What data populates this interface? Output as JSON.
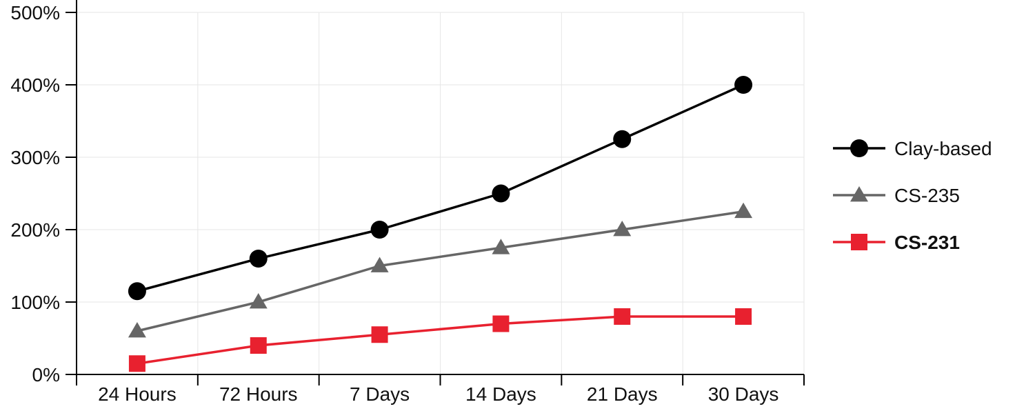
{
  "chart_data": {
    "type": "line",
    "categories": [
      "24 Hours",
      "72 Hours",
      "7 Days",
      "14 Days",
      "21 Days",
      "30 Days"
    ],
    "ylim": [
      0,
      500
    ],
    "yticks": [
      0,
      100,
      200,
      300,
      400,
      500
    ],
    "ytick_labels": [
      "0%",
      "100%",
      "200%",
      "300%",
      "400%",
      "500%"
    ],
    "grid": true,
    "legend_position": "right",
    "series": [
      {
        "name": "Clay-based",
        "values": [
          115,
          160,
          200,
          250,
          325,
          400
        ],
        "color": "#000000",
        "marker": "circle"
      },
      {
        "name": "CS-235",
        "values": [
          60,
          100,
          150,
          175,
          200,
          225
        ],
        "color": "#666666",
        "marker": "triangle"
      },
      {
        "name": "CS-231",
        "values": [
          15,
          40,
          55,
          70,
          80,
          80
        ],
        "color": "#e8212f",
        "marker": "square",
        "bold_legend": true
      }
    ]
  }
}
